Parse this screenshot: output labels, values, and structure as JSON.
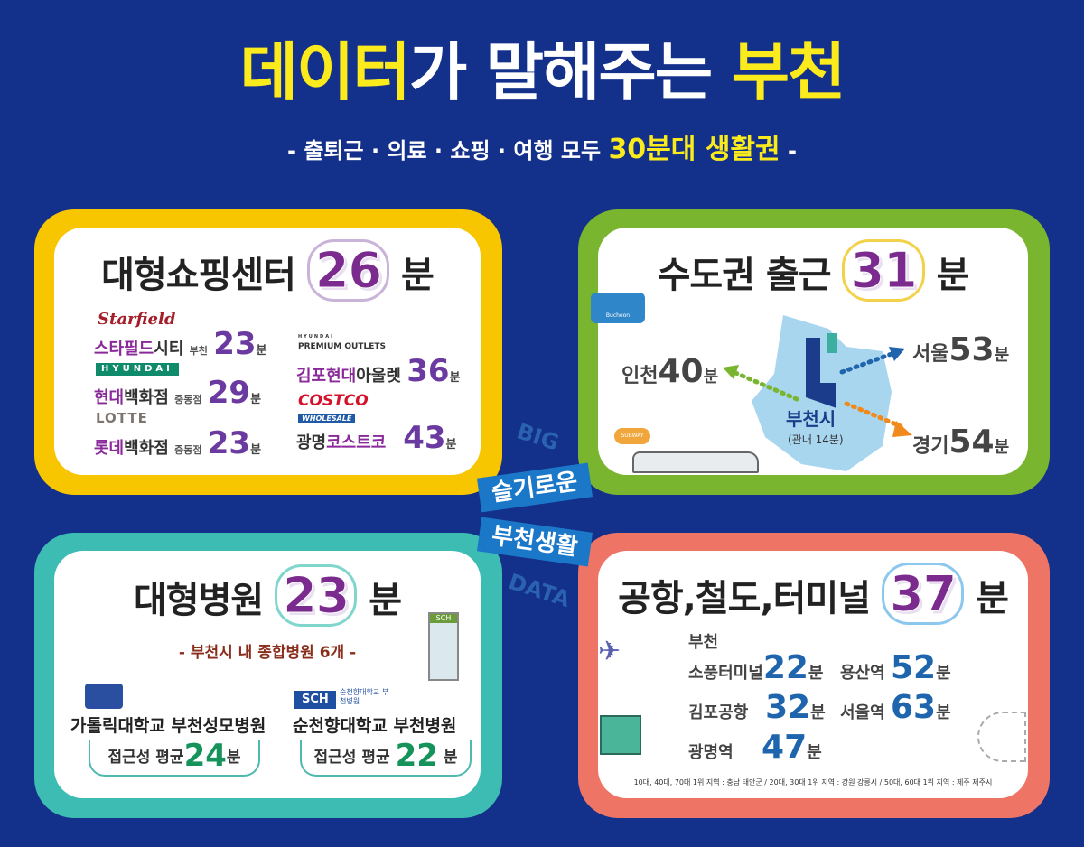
{
  "header": {
    "title_part1": "데이터",
    "title_part2": "가 말해주는 ",
    "title_part3": "부천",
    "subtitle_pre": "- 출퇴근 · 의료 · 쇼핑 · 여행 모두 ",
    "subtitle_highlight": "30분대 생활권",
    "subtitle_post": " -"
  },
  "colors": {
    "background": "#13308a",
    "highlight": "#fbea1c",
    "shopping": "#f7c600",
    "commute": "#7ab52f",
    "hospital": "#3dbcb3",
    "transport": "#ee7466"
  },
  "center": {
    "big": "BIG",
    "line1": "슬기로운",
    "line2": "부천생활",
    "data": "DATA"
  },
  "shopping": {
    "title": "대형쇼핑센터",
    "minutes": "26",
    "unit": "분",
    "items": [
      {
        "logo": "Starfield",
        "name_hl": "스타필드",
        "name": "시티",
        "branch": "부천",
        "minutes": "23",
        "unit": "분"
      },
      {
        "logo": "HYUNDAI",
        "name_hl": "현대",
        "name": "백화점",
        "branch": "중동점",
        "minutes": "29",
        "unit": "분"
      },
      {
        "logo": "LOTTE",
        "name_hl": "롯데",
        "name": "백화점",
        "branch": "중동점",
        "minutes": "23",
        "unit": "분"
      },
      {
        "logo_small": "HYUNDAI",
        "logo": "PREMIUM OUTLETS",
        "name_hl": "김포현대",
        "name": "아울렛",
        "minutes": "36",
        "unit": "분"
      },
      {
        "logo": "COSTCO",
        "logo_sub": "WHOLESALE",
        "name": "광명",
        "name_hl": "코스트코",
        "minutes": "43",
        "unit": "분"
      }
    ]
  },
  "commute": {
    "title": "수도권 출근",
    "minutes": "31",
    "unit": "분",
    "center_name": "부천시",
    "center_note": "(관내 14분)",
    "bus_label": "Bucheon",
    "destinations": [
      {
        "name": "인천",
        "minutes": "40",
        "unit": "분",
        "color": "#7ab52f"
      },
      {
        "name": "서울",
        "minutes": "53",
        "unit": "분",
        "color": "#1e65ad"
      },
      {
        "name": "경기",
        "minutes": "54",
        "unit": "분",
        "color": "#f08a1c"
      }
    ],
    "subway_sign": "SUBWAY"
  },
  "hospital": {
    "title": "대형병원",
    "minutes": "23",
    "unit": "분",
    "subtitle": "- 부천시 내 종합병원 6개 -",
    "building_sign": "SCH",
    "items": [
      {
        "name": "가톨릭대학교 부천성모병원",
        "label": "접근성 평균",
        "minutes": "24",
        "unit": "분"
      },
      {
        "logo": "SCH",
        "logo_text": "순천향대학교 부천병원",
        "name": "순천향대학교 부천병원",
        "label": "접근성 평균",
        "minutes": "22",
        "unit": "분"
      }
    ]
  },
  "transport": {
    "title": "공항,철도,터미널",
    "minutes": "37",
    "unit": "분",
    "items": [
      {
        "name": "부천\n소풍터미널",
        "line1": "부천",
        "line2": "소풍터미널",
        "minutes": "22",
        "unit": "분"
      },
      {
        "name": "용산역",
        "minutes": "52",
        "unit": "분"
      },
      {
        "name": "김포공항",
        "minutes": "32",
        "unit": "분"
      },
      {
        "name": "서울역",
        "minutes": "63",
        "unit": "분"
      },
      {
        "name": "광명역",
        "minutes": "47",
        "unit": "분"
      }
    ],
    "footnote": "10대, 40대, 70대 1위 지역 : 충남 태안군 / 20대, 30대 1위 지역 : 강원 강릉시 / 50대, 60대 1위 지역 : 제주 제주시"
  }
}
